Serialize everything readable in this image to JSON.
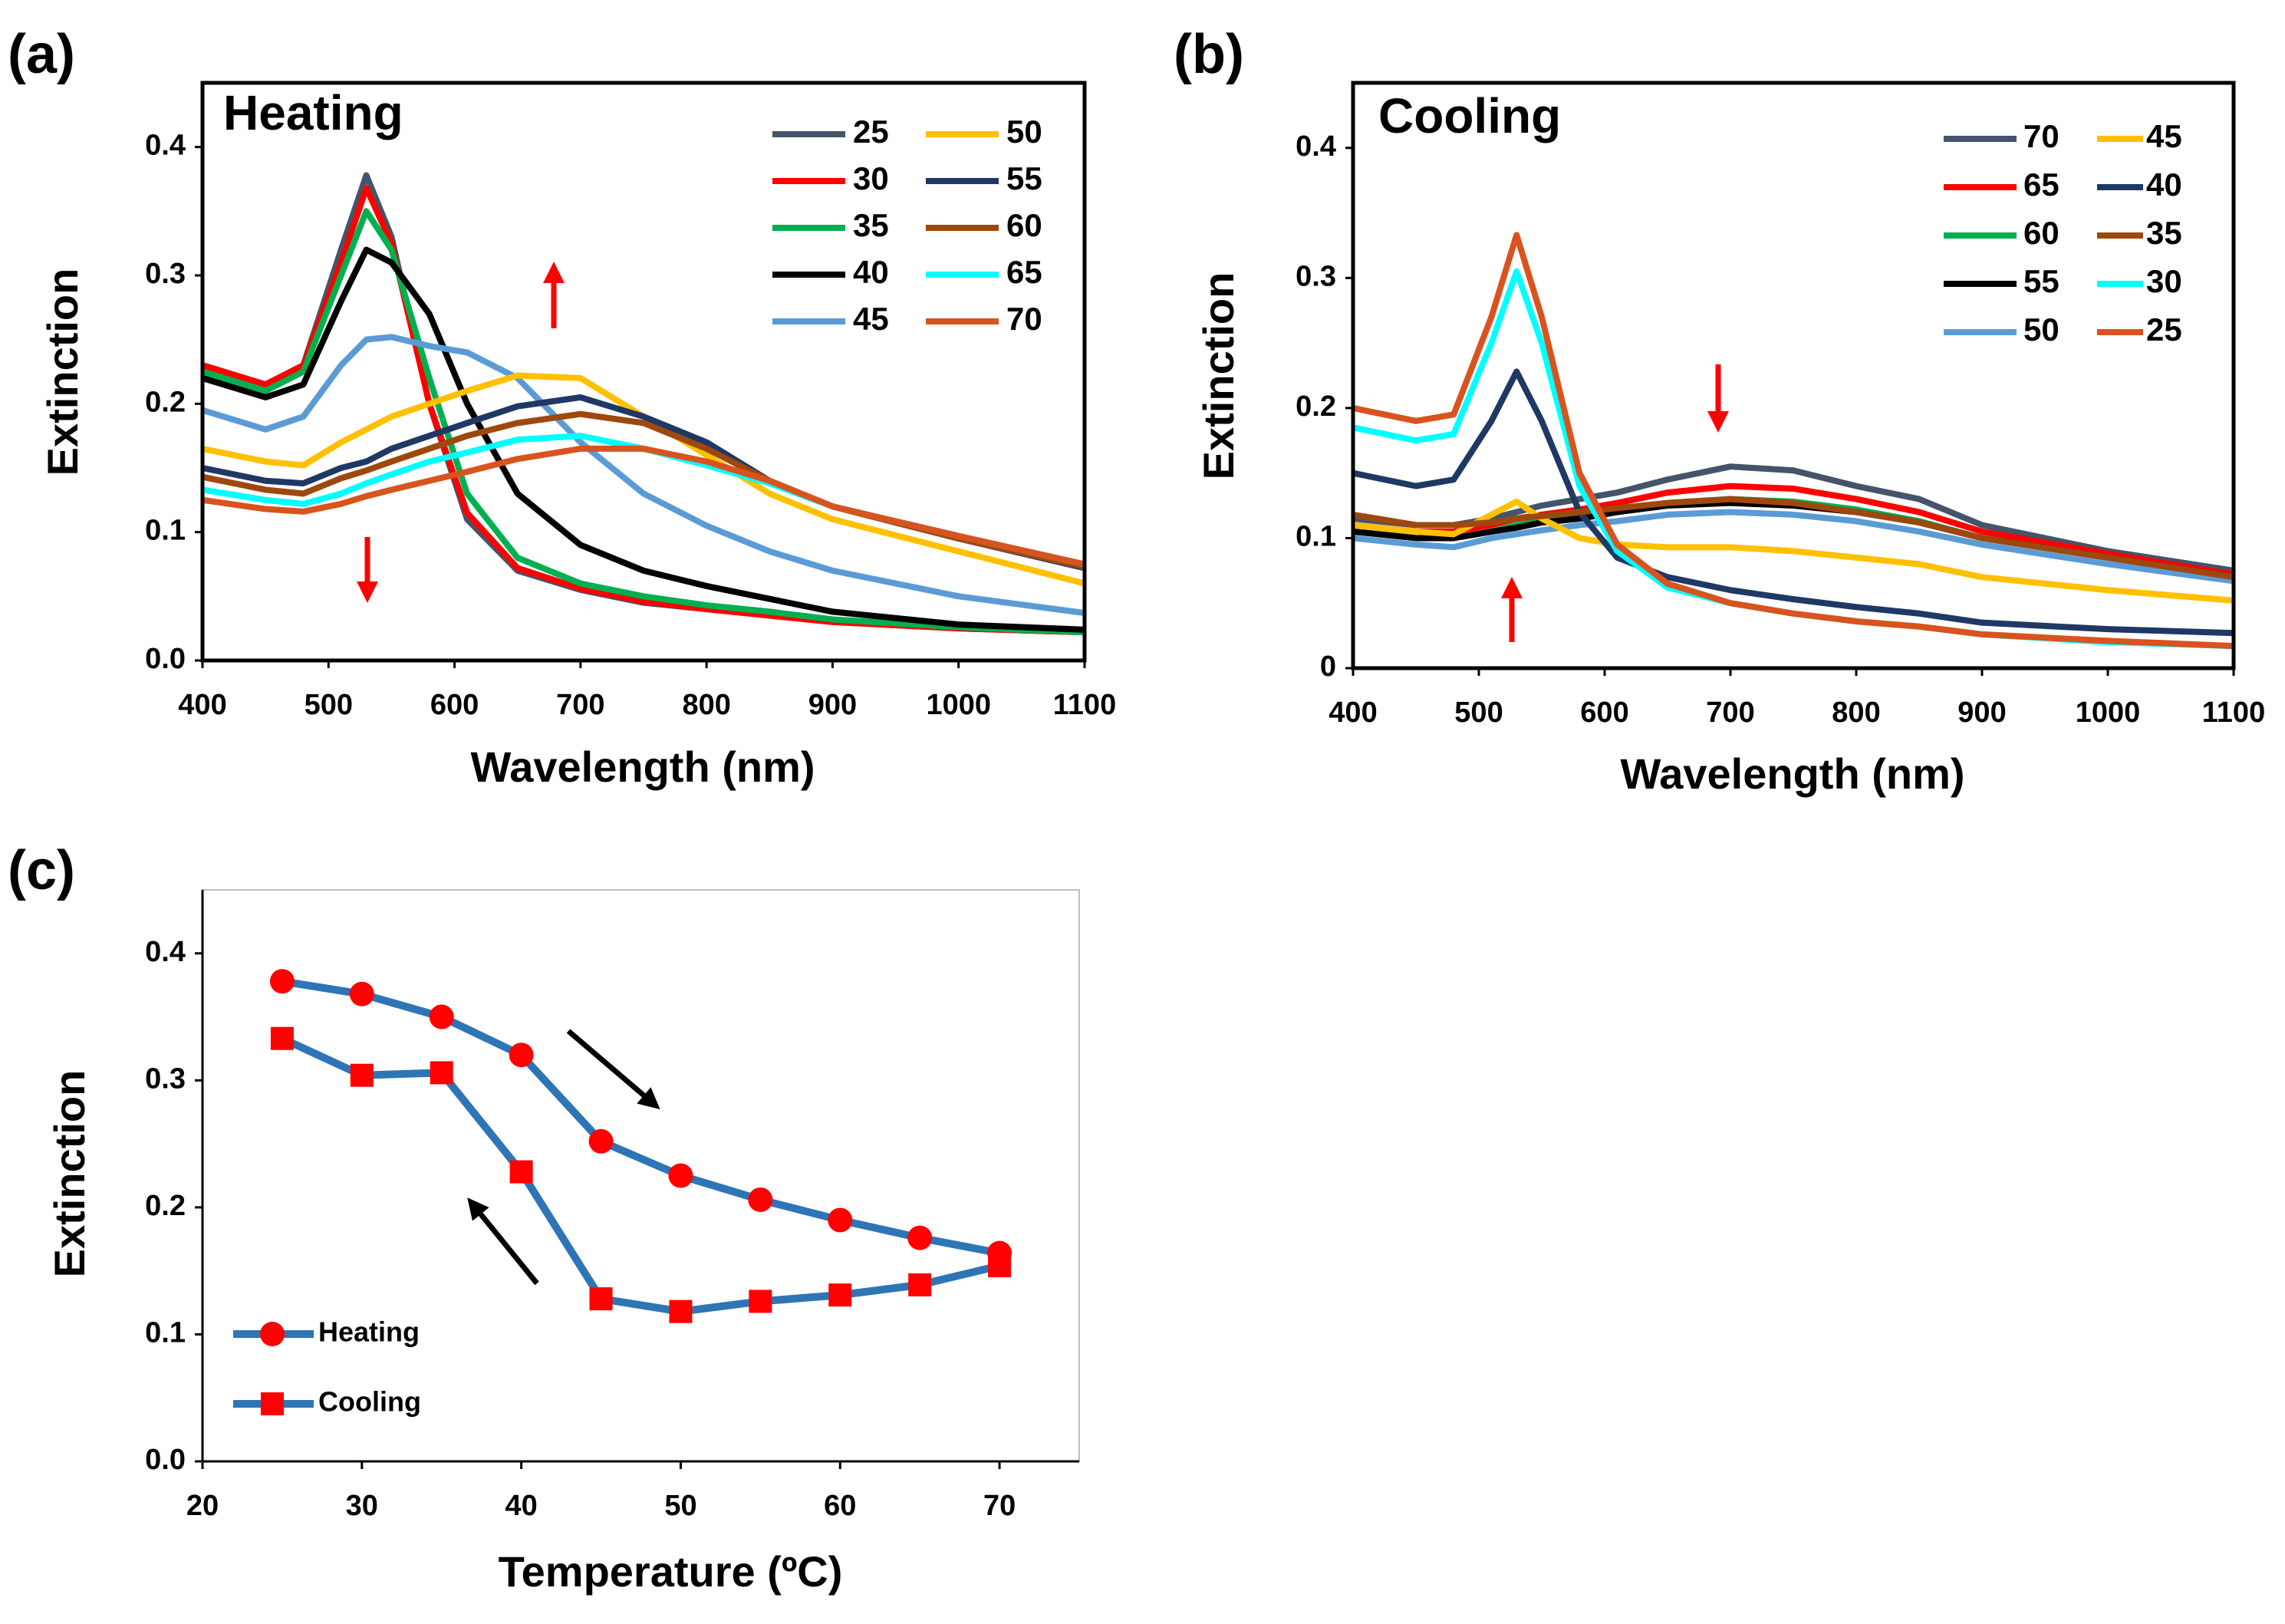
{
  "chart_data": [
    {
      "type": "line",
      "panel": "(a)",
      "title": "Heating",
      "x_label": "Wavelength (nm)",
      "y_label": "Extinction",
      "x": [
        400,
        450,
        480,
        510,
        530,
        550,
        580,
        610,
        650,
        700,
        750,
        800,
        850,
        900,
        1000,
        1100
      ],
      "xlim": [
        400,
        1100
      ],
      "xticks": [
        400,
        500,
        600,
        700,
        800,
        900,
        1000,
        1100
      ],
      "ylim": [
        0,
        0.45
      ],
      "yticks": [
        {
          "value": 0,
          "label": "0.0"
        },
        0.1,
        0.2,
        0.3,
        0.4
      ],
      "legend": "upper right",
      "series": [
        {
          "name": "25",
          "color": "#44546a",
          "values": [
            0.23,
            0.215,
            0.23,
            0.32,
            0.378,
            0.33,
            0.2,
            0.11,
            0.07,
            0.055,
            0.045,
            0.04,
            0.035,
            0.03,
            0.025,
            0.022
          ]
        },
        {
          "name": "30",
          "color": "#ff0000",
          "values": [
            0.23,
            0.215,
            0.23,
            0.31,
            0.368,
            0.325,
            0.2,
            0.115,
            0.072,
            0.056,
            0.046,
            0.04,
            0.035,
            0.03,
            0.025,
            0.022
          ]
        },
        {
          "name": "35",
          "color": "#00b050",
          "values": [
            0.225,
            0.21,
            0.225,
            0.3,
            0.35,
            0.32,
            0.22,
            0.13,
            0.08,
            0.06,
            0.05,
            0.043,
            0.038,
            0.032,
            0.026,
            0.022
          ]
        },
        {
          "name": "40",
          "color": "#000000",
          "values": [
            0.22,
            0.205,
            0.215,
            0.28,
            0.32,
            0.31,
            0.27,
            0.2,
            0.13,
            0.09,
            0.07,
            0.058,
            0.048,
            0.038,
            0.028,
            0.024
          ]
        },
        {
          "name": "45",
          "color": "#5b9bd5",
          "values": [
            0.195,
            0.18,
            0.19,
            0.23,
            0.25,
            0.252,
            0.245,
            0.24,
            0.22,
            0.17,
            0.13,
            0.105,
            0.085,
            0.07,
            0.05,
            0.037
          ]
        },
        {
          "name": "50",
          "color": "#ffc000",
          "values": [
            0.165,
            0.155,
            0.152,
            0.17,
            0.18,
            0.19,
            0.2,
            0.21,
            0.222,
            0.22,
            0.19,
            0.16,
            0.13,
            0.11,
            0.085,
            0.06
          ]
        },
        {
          "name": "55",
          "color": "#1f3864",
          "values": [
            0.15,
            0.14,
            0.138,
            0.15,
            0.155,
            0.165,
            0.175,
            0.185,
            0.198,
            0.205,
            0.19,
            0.17,
            0.14,
            0.12,
            0.095,
            0.072
          ]
        },
        {
          "name": "60",
          "color": "#9e480e",
          "values": [
            0.143,
            0.133,
            0.13,
            0.142,
            0.148,
            0.155,
            0.165,
            0.175,
            0.185,
            0.192,
            0.185,
            0.165,
            0.14,
            0.12,
            0.095,
            0.073
          ]
        },
        {
          "name": "65",
          "color": "#00ffff",
          "values": [
            0.133,
            0.125,
            0.122,
            0.13,
            0.138,
            0.145,
            0.155,
            0.162,
            0.172,
            0.175,
            0.165,
            0.152,
            0.138,
            0.12,
            0.097,
            0.075
          ]
        },
        {
          "name": "70",
          "color": "#d9531e",
          "values": [
            0.125,
            0.118,
            0.116,
            0.122,
            0.128,
            0.133,
            0.14,
            0.147,
            0.157,
            0.165,
            0.165,
            0.155,
            0.14,
            0.12,
            0.097,
            0.075
          ]
        }
      ]
    },
    {
      "type": "line",
      "panel": "(b)",
      "title": "Cooling",
      "x_label": "Wavelength (nm)",
      "y_label": "Extinction",
      "x": [
        400,
        450,
        480,
        510,
        530,
        550,
        580,
        610,
        650,
        700,
        750,
        800,
        850,
        900,
        1000,
        1100
      ],
      "xlim": [
        400,
        1100
      ],
      "xticks": [
        400,
        500,
        600,
        700,
        800,
        900,
        1000,
        1100
      ],
      "ylim": [
        0,
        0.45
      ],
      "yticks": [
        {
          "value": 0,
          "label": "0"
        },
        0.1,
        0.2,
        0.3,
        0.4
      ],
      "legend": "upper right",
      "series": [
        {
          "name": "70",
          "color": "#44546a",
          "values": [
            0.115,
            0.11,
            0.11,
            0.115,
            0.12,
            0.125,
            0.13,
            0.135,
            0.145,
            0.155,
            0.152,
            0.14,
            0.13,
            0.11,
            0.09,
            0.075
          ]
        },
        {
          "name": "65",
          "color": "#ff0000",
          "values": [
            0.11,
            0.105,
            0.105,
            0.11,
            0.115,
            0.118,
            0.122,
            0.127,
            0.135,
            0.14,
            0.138,
            0.13,
            0.12,
            0.105,
            0.088,
            0.072
          ]
        },
        {
          "name": "60",
          "color": "#00b050",
          "values": [
            0.105,
            0.1,
            0.1,
            0.105,
            0.11,
            0.113,
            0.117,
            0.12,
            0.127,
            0.13,
            0.128,
            0.122,
            0.113,
            0.1,
            0.085,
            0.07
          ]
        },
        {
          "name": "55",
          "color": "#000000",
          "values": [
            0.105,
            0.1,
            0.1,
            0.105,
            0.108,
            0.112,
            0.115,
            0.12,
            0.125,
            0.127,
            0.125,
            0.12,
            0.112,
            0.1,
            0.085,
            0.07
          ]
        },
        {
          "name": "50",
          "color": "#5b9bd5",
          "values": [
            0.1,
            0.095,
            0.093,
            0.1,
            0.103,
            0.106,
            0.11,
            0.113,
            0.118,
            0.12,
            0.118,
            0.113,
            0.105,
            0.095,
            0.08,
            0.067
          ]
        },
        {
          "name": "45",
          "color": "#ffc000",
          "values": [
            0.11,
            0.105,
            0.103,
            0.118,
            0.128,
            0.115,
            0.1,
            0.095,
            0.093,
            0.093,
            0.09,
            0.085,
            0.08,
            0.07,
            0.06,
            0.052
          ]
        },
        {
          "name": "40",
          "color": "#1f3864",
          "values": [
            0.15,
            0.14,
            0.145,
            0.19,
            0.228,
            0.19,
            0.12,
            0.085,
            0.07,
            0.06,
            0.053,
            0.047,
            0.042,
            0.035,
            0.03,
            0.027
          ]
        },
        {
          "name": "35",
          "color": "#9e480e",
          "values": [
            0.118,
            0.11,
            0.11,
            0.112,
            0.115,
            0.117,
            0.12,
            0.123,
            0.127,
            0.13,
            0.127,
            0.12,
            0.112,
            0.1,
            0.085,
            0.07
          ]
        },
        {
          "name": "30",
          "color": "#00ffff",
          "values": [
            0.185,
            0.175,
            0.18,
            0.25,
            0.305,
            0.25,
            0.14,
            0.09,
            0.062,
            0.05,
            0.042,
            0.036,
            0.032,
            0.026,
            0.02,
            0.017
          ]
        },
        {
          "name": "25",
          "color": "#d9531e",
          "values": [
            0.2,
            0.19,
            0.195,
            0.27,
            0.333,
            0.27,
            0.15,
            0.095,
            0.065,
            0.05,
            0.042,
            0.036,
            0.032,
            0.026,
            0.021,
            0.017
          ]
        }
      ]
    },
    {
      "type": "line",
      "panel": "(c)",
      "x_label": "Temperature (ºC)",
      "y_label": "Extinction",
      "x": [
        25,
        30,
        35,
        40,
        45,
        50,
        55,
        60,
        65,
        70
      ],
      "xlim": [
        20,
        75
      ],
      "xticks": [
        20,
        30,
        40,
        50,
        60,
        70
      ],
      "ylim": [
        0,
        0.45
      ],
      "yticks": [
        {
          "value": 0,
          "label": "0.0"
        },
        0.1,
        0.2,
        0.3,
        0.4
      ],
      "legend": "lower left",
      "series": [
        {
          "name": "Heating",
          "color": "#2e75b6",
          "marker": "circle",
          "marker_color": "#ff0000",
          "values": [
            0.378,
            0.368,
            0.35,
            0.32,
            0.252,
            0.225,
            0.206,
            0.19,
            0.176,
            0.164
          ]
        },
        {
          "name": "Cooling",
          "color": "#2e75b6",
          "marker": "square",
          "marker_color": "#ff0000",
          "values": [
            0.333,
            0.304,
            0.306,
            0.228,
            0.128,
            0.118,
            0.126,
            0.131,
            0.139,
            0.154
          ]
        }
      ]
    }
  ]
}
